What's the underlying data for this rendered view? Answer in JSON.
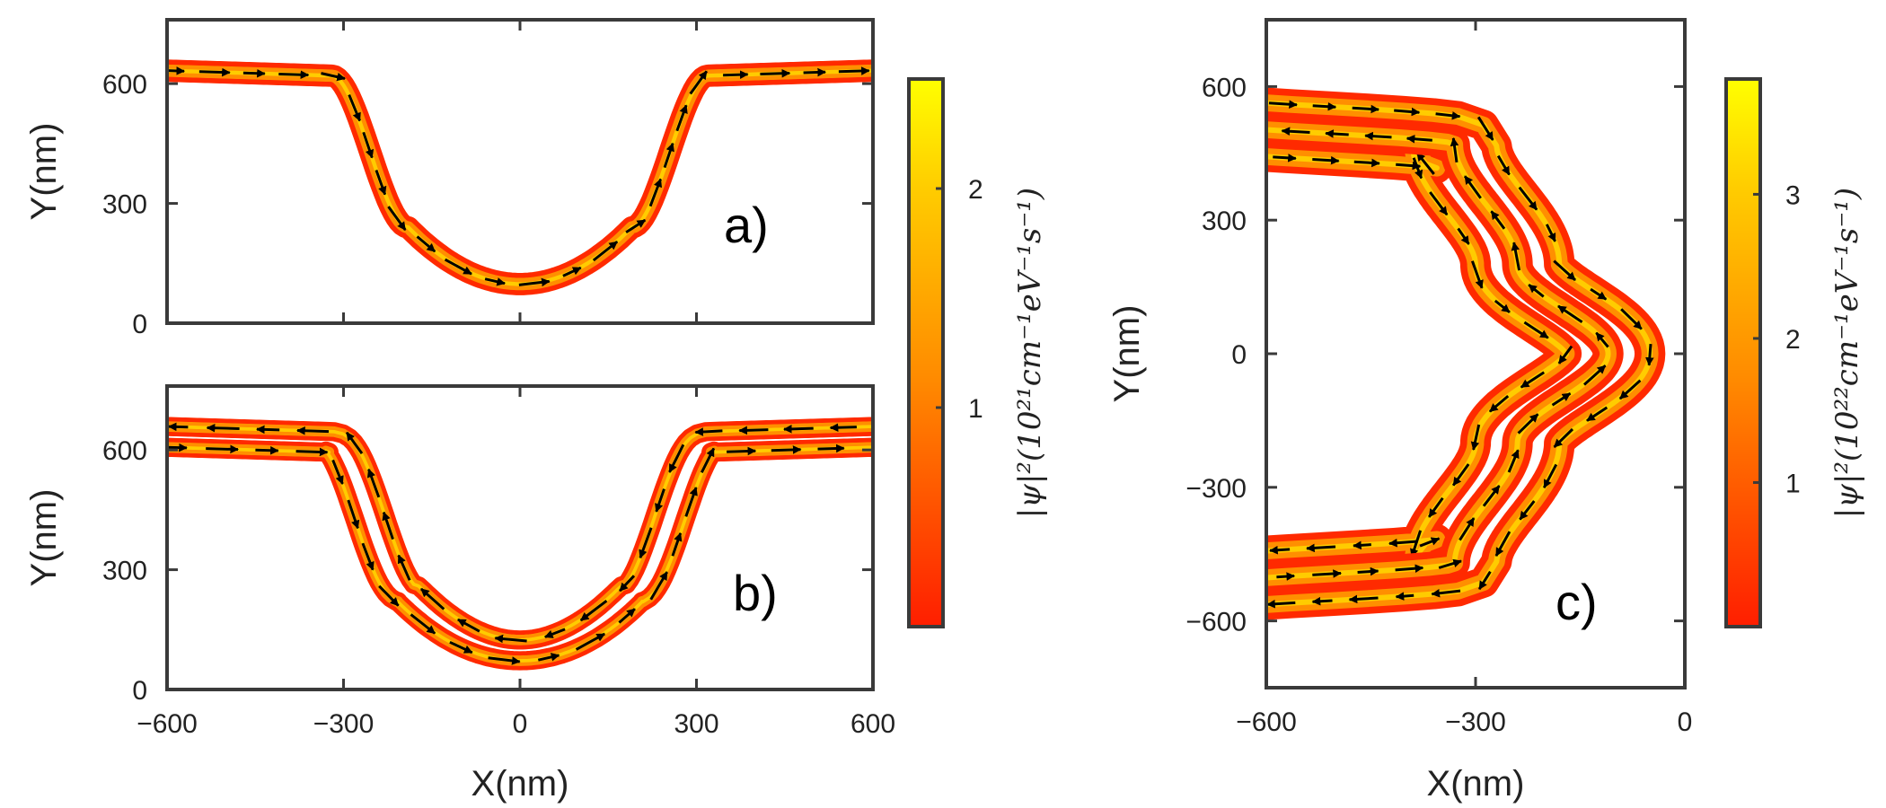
{
  "colors": {
    "channel_low": "#ff2a00",
    "channel_mid": "#ff9a00",
    "channel_high": "#ffff00",
    "arrow": "#000000",
    "frame": "#3a3a3a"
  },
  "chart_data": [
    {
      "type": "heatmap",
      "panel_label": "a)",
      "title": "",
      "xlabel": "",
      "ylabel": "Y(nm)",
      "xlim": [
        -600,
        600
      ],
      "ylim": [
        0,
        760
      ],
      "x_ticks": [
        -600,
        -300,
        0,
        300,
        600
      ],
      "y_ticks": [
        0,
        300,
        600
      ],
      "y_tick_labels": [
        "0",
        "300",
        "600"
      ],
      "channels": 1,
      "edge_offsets_nm": [
        0
      ],
      "direction": [
        1
      ],
      "half_width_nm": 28,
      "arrow_rows": [
        {
          "points": [
            [
              -540,
              620
            ],
            [
              -420,
              620
            ],
            [
              -310,
              615
            ],
            [
              -240,
              560
            ],
            [
              -205,
              390
            ],
            [
              -180,
              270
            ],
            [
              -120,
              140
            ],
            [
              -40,
              90
            ],
            [
              40,
              90
            ],
            [
              120,
              150
            ],
            [
              175,
              270
            ],
            [
              205,
              390
            ],
            [
              245,
              590
            ],
            [
              330,
              630
            ],
            [
              450,
              635
            ],
            [
              570,
              635
            ]
          ],
          "rotation": 0
        }
      ]
    },
    {
      "type": "heatmap",
      "panel_label": "b)",
      "title": "",
      "xlabel": "X(nm)",
      "ylabel": "Y(nm)",
      "xlim": [
        -600,
        600
      ],
      "ylim": [
        0,
        760
      ],
      "x_ticks": [
        -600,
        -300,
        0,
        300,
        600
      ],
      "x_tick_labels": [
        "−600",
        "−300",
        "0",
        "300",
        "600"
      ],
      "y_ticks": [
        0,
        300,
        600
      ],
      "y_tick_labels": [
        "0",
        "300",
        "600"
      ],
      "channels": 2,
      "edge_offsets_nm": [
        -26,
        26
      ],
      "direction": [
        1,
        -1
      ],
      "half_width_nm": 24,
      "arrow_rows": []
    },
    {
      "type": "heatmap",
      "panel_label": "c)",
      "title": "",
      "xlabel": "X(nm)",
      "ylabel": "Y(nm)",
      "xlim": [
        -600,
        0
      ],
      "ylim": [
        -750,
        750
      ],
      "x_ticks": [
        -600,
        -300,
        0
      ],
      "x_tick_labels": [
        "−600",
        "−300",
        "0"
      ],
      "y_ticks": [
        -600,
        -300,
        0,
        300,
        600
      ],
      "y_tick_labels": [
        "−600",
        "−300",
        "0",
        "300",
        "600"
      ],
      "channels": 3,
      "edge_offsets_nm": [
        -60,
        0,
        60
      ],
      "direction": [
        1,
        -1,
        1
      ],
      "half_width_nm": 22
    }
  ],
  "colorbars": [
    {
      "label": "|ψ|²(10²¹cm⁻¹eV⁻¹s⁻¹)",
      "ticks": [
        1,
        2
      ],
      "tick_labels": [
        "1",
        "2"
      ],
      "range": [
        0,
        2.5
      ]
    },
    {
      "label": "|ψ|²(10²²cm⁻¹eV⁻¹s⁻¹)",
      "ticks": [
        1,
        2,
        3
      ],
      "tick_labels": [
        "1",
        "2",
        "3"
      ],
      "range": [
        0,
        3.8
      ]
    }
  ]
}
